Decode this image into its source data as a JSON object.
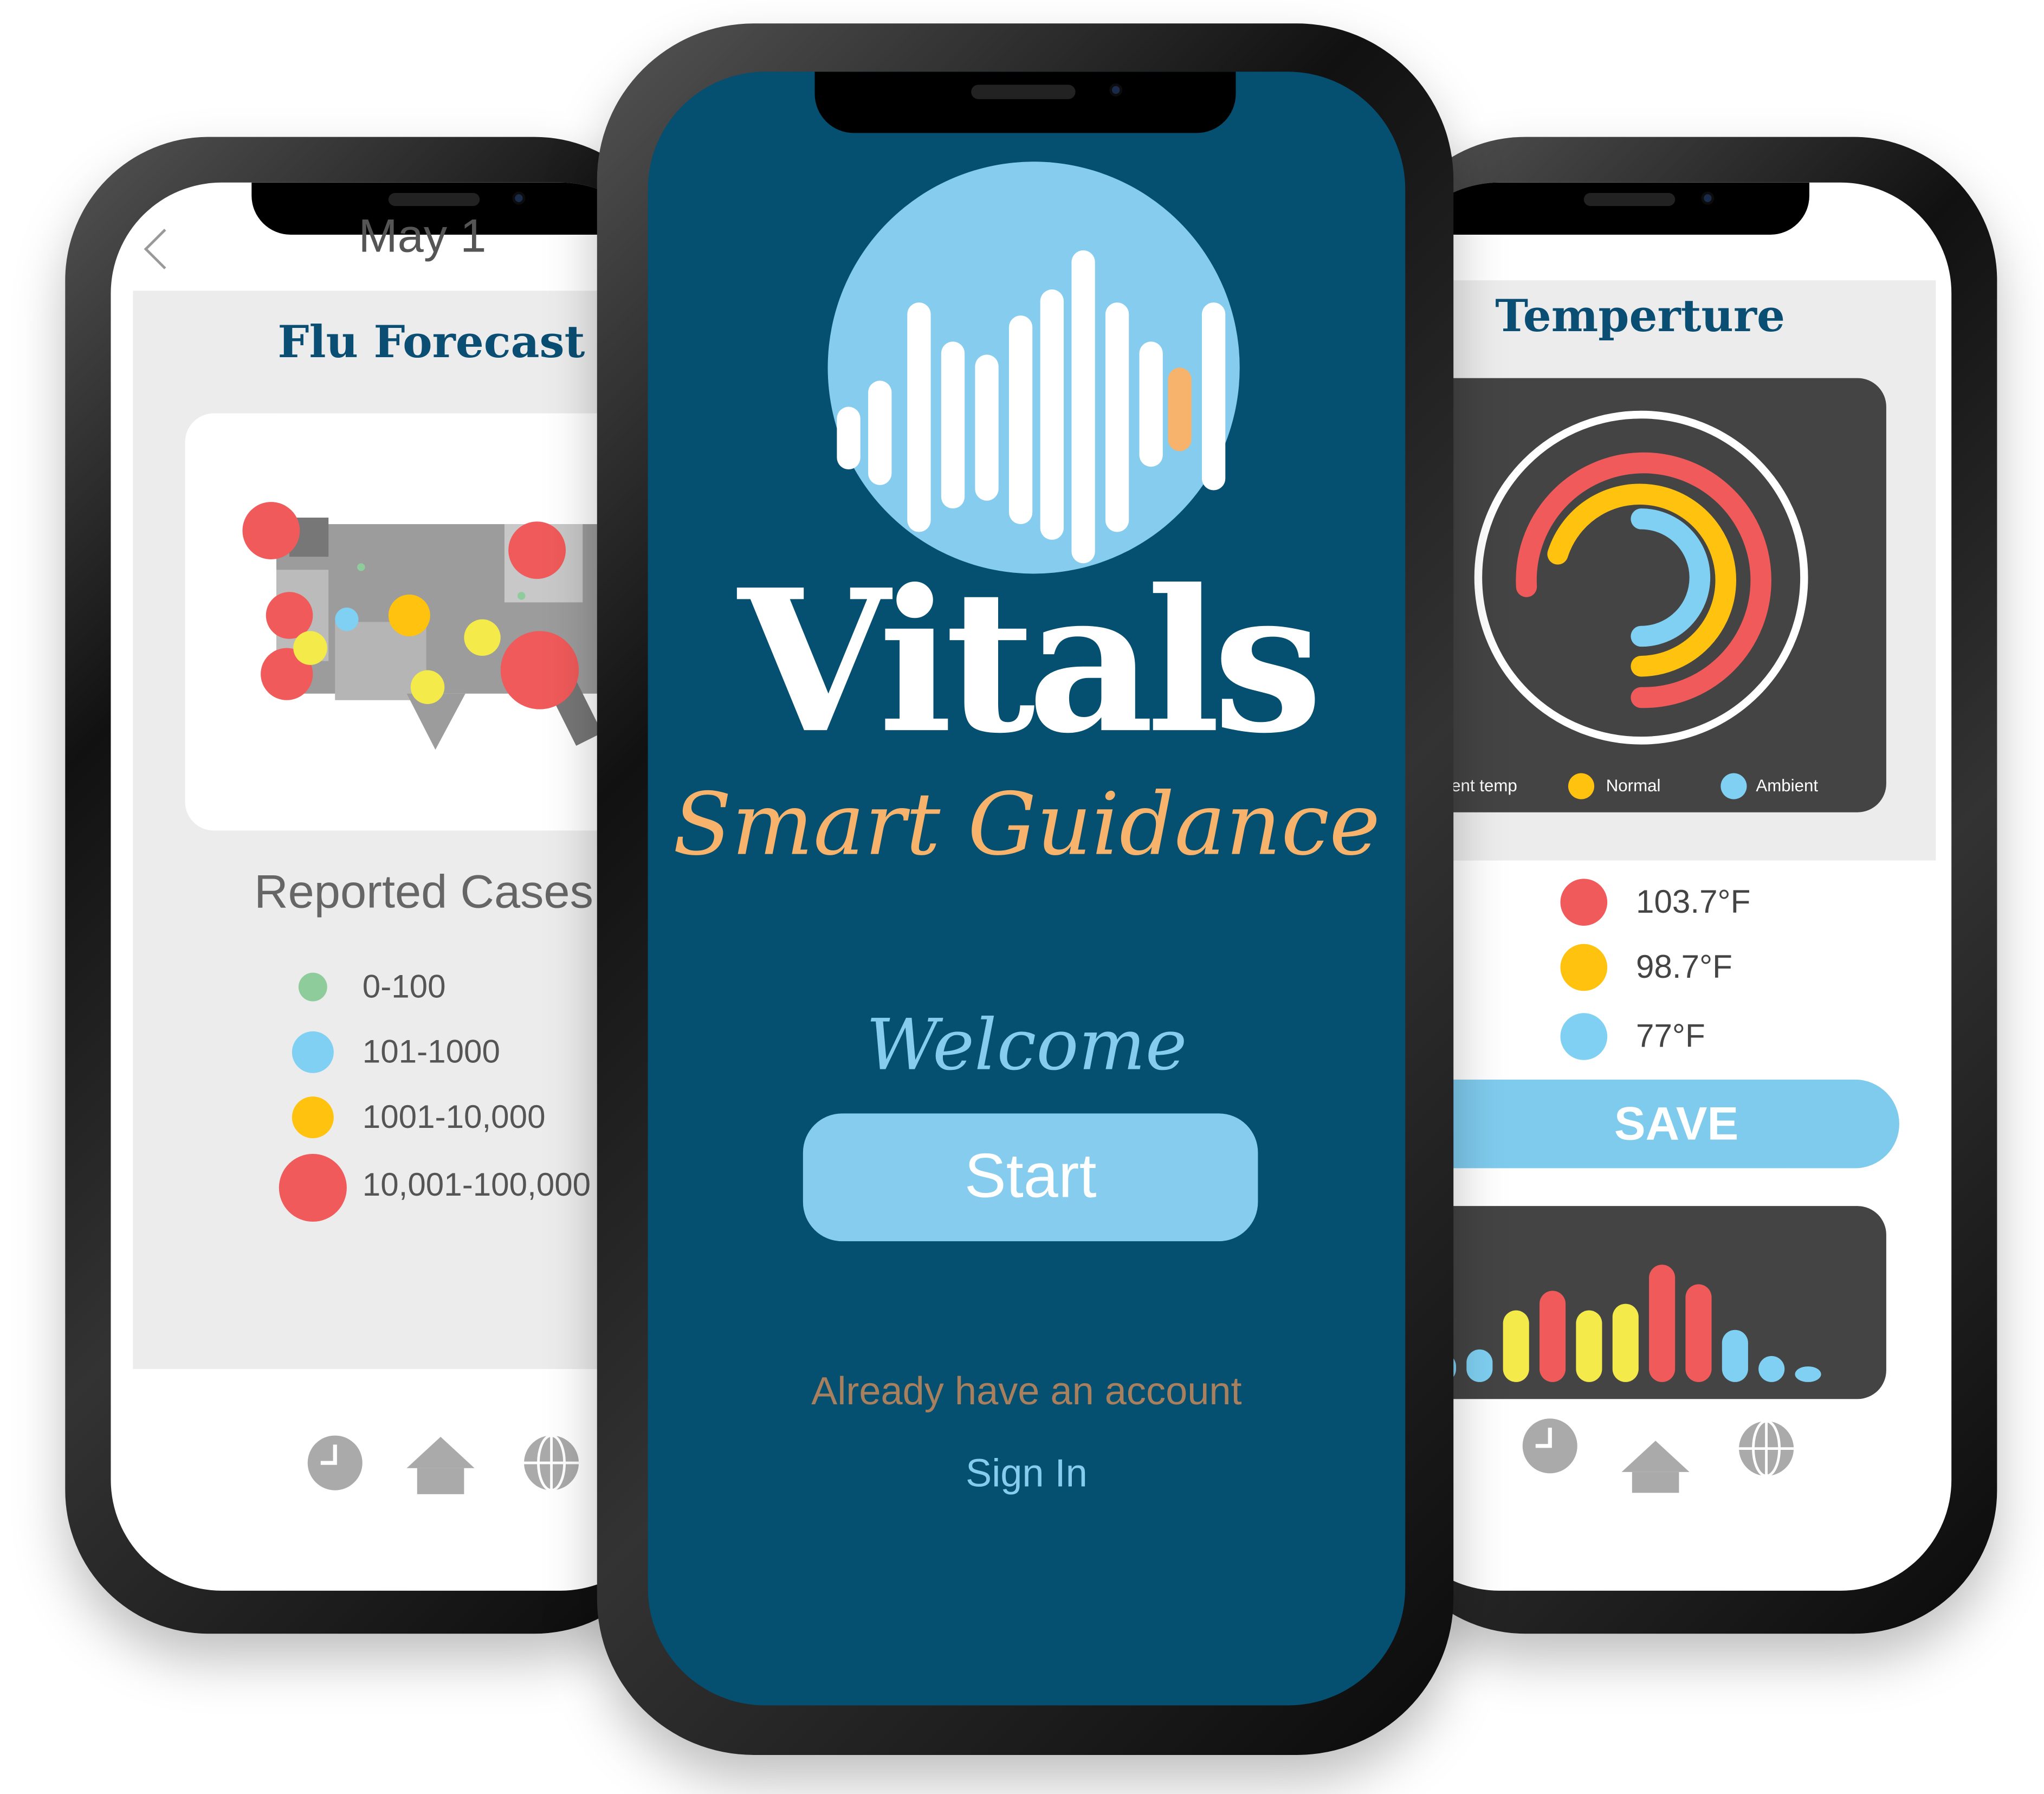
{
  "left_screen": {
    "date": "May 1",
    "title": "Flu Forecast",
    "subtitle": "Reported Cases",
    "legend": [
      {
        "label": "0-100",
        "color": "#8fcc9c"
      },
      {
        "label": "101-1000",
        "color": "#7fd0f2"
      },
      {
        "label": "1001-10,000",
        "color": "#ffc20e"
      },
      {
        "label": "10,001-100,000",
        "color": "#f05a5a"
      }
    ],
    "nav": [
      "clock-icon",
      "home-icon",
      "globe-icon"
    ]
  },
  "center_screen": {
    "logo_title": "Vitals",
    "logo_subtitle": "Smart Guidance",
    "welcome": "Welcome",
    "start_button": "Start",
    "account_prompt": "Already have an account",
    "sign_in": "Sign In",
    "colors": {
      "background": "#054f71",
      "accent": "#85ccee",
      "orange": "#f7b36b"
    }
  },
  "right_screen": {
    "title": "Temperture",
    "gauge_legend": [
      {
        "label": "Current temp",
        "color": "#f05a5a"
      },
      {
        "label": "Normal",
        "color": "#ffc20e"
      },
      {
        "label": "Ambient",
        "color": "#7fd0f2"
      }
    ],
    "readings": [
      {
        "value": "103.7°F",
        "color": "#f05a5a"
      },
      {
        "value": "98.7°F",
        "color": "#ffc20e"
      },
      {
        "value": "77°F",
        "color": "#7fd0f2"
      }
    ],
    "save_button": "SAVE",
    "nav": [
      "clock-icon",
      "home-icon",
      "globe-icon"
    ]
  }
}
